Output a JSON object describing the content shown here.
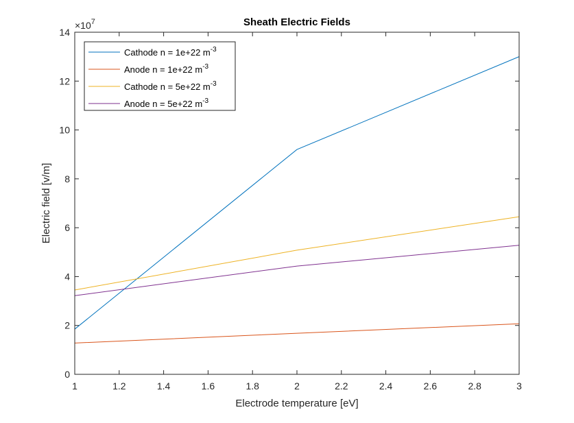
{
  "chart_data": {
    "type": "line",
    "title": "Sheath Electric Fields",
    "xlabel": "Electrode temperature [eV]",
    "ylabel": "Electric field [v/m]",
    "y_exponent": {
      "base": "×10",
      "power": "7"
    },
    "xlim": [
      1,
      3
    ],
    "ylim": [
      0,
      140000000
    ],
    "grid": false,
    "legend_position": "top-left",
    "x_ticks": [
      "1",
      "1.2",
      "1.4",
      "1.6",
      "1.8",
      "2",
      "2.2",
      "2.4",
      "2.6",
      "2.8",
      "3"
    ],
    "y_ticks": [
      "0",
      "2",
      "4",
      "6",
      "8",
      "10",
      "12",
      "14"
    ],
    "x": [
      1,
      2,
      3
    ],
    "series": [
      {
        "name": "Cathode n = 1e+22 m",
        "superscript": "-3",
        "color": "#0072BD",
        "values": [
          18500000,
          92000000,
          130000000
        ]
      },
      {
        "name": "Anode n = 1e+22 m",
        "superscript": "-3",
        "color": "#D95319",
        "values": [
          12800000,
          16800000,
          20700000
        ]
      },
      {
        "name": "Cathode n = 5e+22 m",
        "superscript": "-3",
        "color": "#EDB120",
        "values": [
          34500000,
          50800000,
          64500000
        ]
      },
      {
        "name": "Anode n = 5e+22 m",
        "superscript": "-3",
        "color": "#7E2F8E",
        "values": [
          32200000,
          44300000,
          52800000
        ]
      }
    ]
  }
}
